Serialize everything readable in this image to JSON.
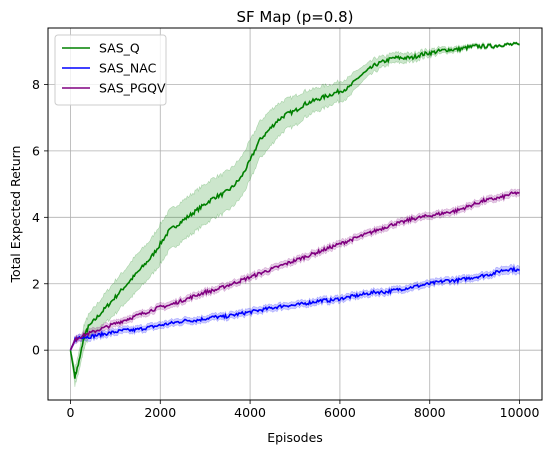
{
  "chart_data": {
    "type": "line",
    "title": "SF Map (p=0.8)",
    "xlabel": "Episodes",
    "ylabel": "Total Expected Return",
    "xlim": [
      -500,
      10500
    ],
    "ylim": [
      -1.5,
      9.7
    ],
    "xticks": [
      0,
      2000,
      4000,
      6000,
      8000,
      10000
    ],
    "xtick_labels": [
      "0",
      "2000",
      "4000",
      "6000",
      "8000",
      "10000"
    ],
    "yticks": [
      0,
      2,
      4,
      6,
      8
    ],
    "ytick_labels": [
      "0",
      "2",
      "4",
      "6",
      "8"
    ],
    "grid": true,
    "legend_position": "upper-left",
    "series": [
      {
        "name": "SAS_Q",
        "color": "#008000",
        "x": [
          0,
          100,
          200,
          300,
          400,
          600,
          800,
          1000,
          1200,
          1400,
          1600,
          1800,
          2000,
          2200,
          2400,
          2600,
          2800,
          3000,
          3200,
          3400,
          3600,
          3800,
          4000,
          4200,
          4400,
          4600,
          4800,
          5000,
          5200,
          5400,
          5600,
          5800,
          6000,
          6200,
          6400,
          6600,
          6800,
          7000,
          7200,
          7400,
          7600,
          7800,
          8000,
          8200,
          8400,
          8600,
          8800,
          9000,
          9200,
          9400,
          9600,
          9800,
          10000
        ],
        "y": [
          0.0,
          -0.8,
          -0.3,
          0.4,
          0.7,
          1.0,
          1.3,
          1.6,
          1.9,
          2.2,
          2.5,
          2.8,
          3.2,
          3.6,
          3.8,
          4.0,
          4.2,
          4.4,
          4.6,
          4.7,
          4.9,
          5.2,
          5.7,
          6.3,
          6.6,
          6.9,
          7.1,
          7.2,
          7.4,
          7.5,
          7.6,
          7.7,
          7.8,
          7.9,
          8.2,
          8.4,
          8.6,
          8.7,
          8.8,
          8.8,
          8.8,
          8.9,
          8.95,
          9.0,
          9.05,
          9.05,
          9.1,
          9.15,
          9.15,
          9.15,
          9.2,
          9.2,
          9.2
        ],
        "band": [
          0.05,
          0.25,
          0.3,
          0.35,
          0.35,
          0.4,
          0.45,
          0.5,
          0.5,
          0.55,
          0.55,
          0.55,
          0.6,
          0.6,
          0.6,
          0.6,
          0.6,
          0.6,
          0.6,
          0.6,
          0.6,
          0.6,
          0.6,
          0.55,
          0.55,
          0.5,
          0.45,
          0.45,
          0.4,
          0.35,
          0.35,
          0.3,
          0.3,
          0.3,
          0.25,
          0.2,
          0.2,
          0.15,
          0.15,
          0.15,
          0.12,
          0.12,
          0.1,
          0.1,
          0.08,
          0.08,
          0.06,
          0.05,
          0.05,
          0.04,
          0.03,
          0.03,
          0.03
        ]
      },
      {
        "name": "SAS_NAC",
        "color": "#0000ff",
        "x": [
          0,
          100,
          200,
          400,
          600,
          800,
          1000,
          1200,
          1400,
          1600,
          1800,
          2000,
          2200,
          2400,
          2600,
          2800,
          3000,
          3200,
          3400,
          3600,
          3800,
          4000,
          4200,
          4400,
          4600,
          4800,
          5000,
          5200,
          5400,
          5600,
          5800,
          6000,
          6200,
          6400,
          6600,
          6800,
          7000,
          7200,
          7400,
          7600,
          7800,
          8000,
          8200,
          8400,
          8600,
          8800,
          9000,
          9200,
          9400,
          9600,
          9800,
          10000
        ],
        "y": [
          0.0,
          0.3,
          0.4,
          0.4,
          0.45,
          0.5,
          0.55,
          0.6,
          0.6,
          0.65,
          0.7,
          0.75,
          0.8,
          0.85,
          0.9,
          0.9,
          0.95,
          1.0,
          1.0,
          1.05,
          1.1,
          1.15,
          1.2,
          1.25,
          1.3,
          1.35,
          1.35,
          1.4,
          1.45,
          1.5,
          1.5,
          1.55,
          1.6,
          1.65,
          1.7,
          1.75,
          1.75,
          1.8,
          1.85,
          1.9,
          1.95,
          2.0,
          2.05,
          2.1,
          2.1,
          2.15,
          2.2,
          2.25,
          2.3,
          2.4,
          2.45,
          2.4
        ],
        "band": [
          0.03,
          0.08,
          0.1,
          0.1,
          0.1,
          0.1,
          0.1,
          0.1,
          0.1,
          0.1,
          0.1,
          0.1,
          0.1,
          0.1,
          0.1,
          0.1,
          0.1,
          0.1,
          0.1,
          0.1,
          0.1,
          0.1,
          0.1,
          0.1,
          0.1,
          0.1,
          0.1,
          0.1,
          0.1,
          0.1,
          0.1,
          0.1,
          0.1,
          0.1,
          0.1,
          0.1,
          0.1,
          0.1,
          0.1,
          0.1,
          0.1,
          0.1,
          0.1,
          0.1,
          0.1,
          0.1,
          0.1,
          0.1,
          0.1,
          0.12,
          0.12,
          0.12
        ]
      },
      {
        "name": "SAS_PGQV",
        "color": "#800080",
        "x": [
          0,
          100,
          200,
          400,
          600,
          800,
          1000,
          1200,
          1400,
          1600,
          1800,
          2000,
          2200,
          2400,
          2600,
          2800,
          3000,
          3200,
          3400,
          3600,
          3800,
          4000,
          4200,
          4400,
          4600,
          4800,
          5000,
          5200,
          5400,
          5600,
          5800,
          6000,
          6200,
          6400,
          6600,
          6800,
          7000,
          7200,
          7400,
          7600,
          7800,
          8000,
          8200,
          8400,
          8600,
          8800,
          9000,
          9200,
          9400,
          9600,
          9800,
          10000
        ],
        "y": [
          0.0,
          0.3,
          0.4,
          0.5,
          0.6,
          0.7,
          0.8,
          0.9,
          1.0,
          1.1,
          1.2,
          1.3,
          1.35,
          1.45,
          1.55,
          1.65,
          1.75,
          1.8,
          1.9,
          2.0,
          2.1,
          2.2,
          2.3,
          2.4,
          2.5,
          2.6,
          2.7,
          2.8,
          2.9,
          3.0,
          3.1,
          3.2,
          3.3,
          3.4,
          3.5,
          3.6,
          3.7,
          3.8,
          3.85,
          3.95,
          4.0,
          4.05,
          4.1,
          4.15,
          4.2,
          4.3,
          4.4,
          4.5,
          4.55,
          4.6,
          4.7,
          4.75
        ],
        "band": [
          0.03,
          0.08,
          0.1,
          0.1,
          0.1,
          0.1,
          0.1,
          0.1,
          0.1,
          0.1,
          0.1,
          0.1,
          0.1,
          0.1,
          0.1,
          0.1,
          0.1,
          0.1,
          0.1,
          0.1,
          0.1,
          0.1,
          0.1,
          0.1,
          0.1,
          0.1,
          0.1,
          0.1,
          0.1,
          0.1,
          0.1,
          0.1,
          0.1,
          0.1,
          0.1,
          0.1,
          0.1,
          0.1,
          0.1,
          0.1,
          0.1,
          0.1,
          0.1,
          0.1,
          0.1,
          0.1,
          0.1,
          0.1,
          0.1,
          0.1,
          0.1,
          0.1
        ]
      }
    ]
  }
}
